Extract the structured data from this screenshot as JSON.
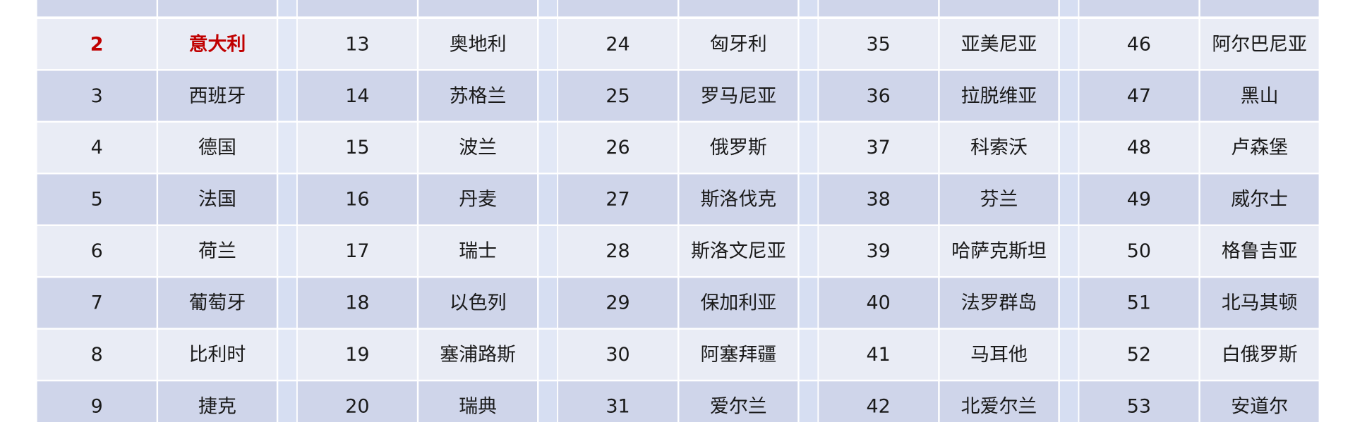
{
  "table": {
    "rows": [
      [
        2,
        "意大利",
        13,
        "奥地利",
        24,
        "匈牙利",
        35,
        "亚美尼亚",
        46,
        "阿尔巴尼亚"
      ],
      [
        3,
        "西班牙",
        14,
        "苏格兰",
        25,
        "罗马尼亚",
        36,
        "拉脱维亚",
        47,
        "黑山"
      ],
      [
        4,
        "德国",
        15,
        "波兰",
        26,
        "俄罗斯",
        37,
        "科索沃",
        48,
        "卢森堡"
      ],
      [
        5,
        "法国",
        16,
        "丹麦",
        27,
        "斯洛伐克",
        38,
        "芬兰",
        49,
        "威尔士"
      ],
      [
        6,
        "荷兰",
        17,
        "瑞士",
        28,
        "斯洛文尼亚",
        39,
        "哈萨克斯坦",
        50,
        "格鲁吉亚"
      ],
      [
        7,
        "葡萄牙",
        18,
        "以色列",
        29,
        "保加利亚",
        40,
        "法罗群岛",
        51,
        "北马其顿"
      ],
      [
        8,
        "比利时",
        19,
        "塞浦路斯",
        30,
        "阿塞拜疆",
        41,
        "马耳他",
        52,
        "白俄罗斯"
      ],
      [
        9,
        "捷克",
        20,
        "瑞典",
        31,
        "爱尔兰",
        42,
        "北爱尔兰",
        53,
        "安道尔"
      ]
    ]
  }
}
